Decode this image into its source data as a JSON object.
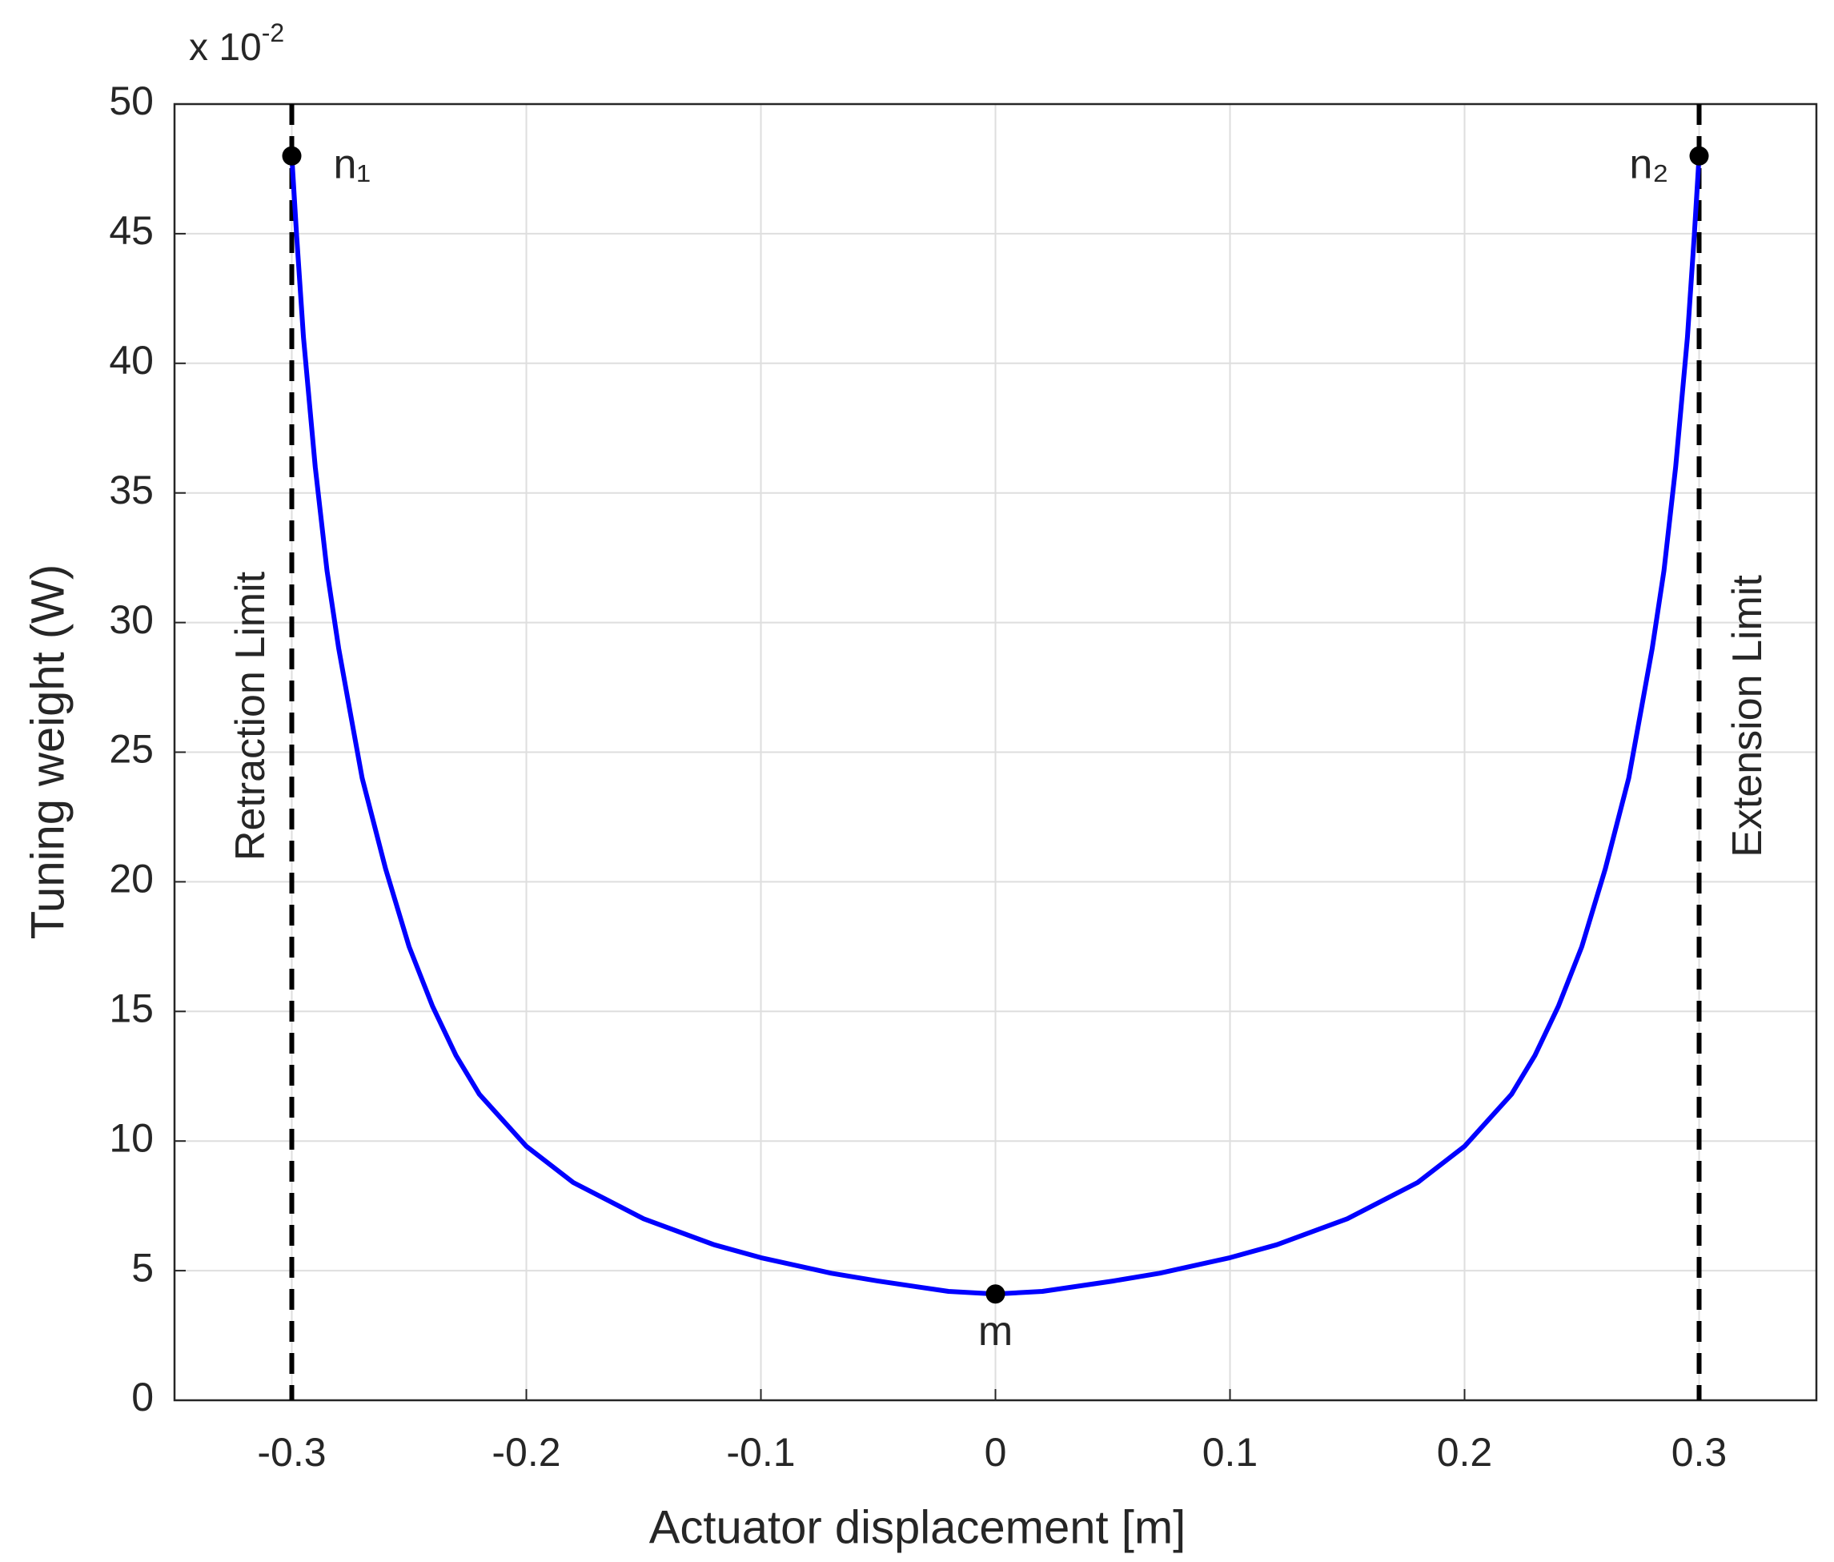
{
  "chart_data": {
    "type": "line",
    "xlabel": "Actuator displacement [m]",
    "ylabel": "Tuning weight (W)",
    "multiplier": {
      "base": "x 10",
      "exponent": "-2"
    },
    "xlim": [
      -0.35,
      0.35
    ],
    "ylim": [
      0,
      50
    ],
    "xticks": [
      -0.3,
      -0.2,
      -0.1,
      0,
      0.1,
      0.2,
      0.3
    ],
    "yticks": [
      0,
      5,
      10,
      15,
      20,
      25,
      30,
      35,
      40,
      45,
      50
    ],
    "grid": true,
    "line": {
      "color": "#0000ff",
      "x": [
        -0.3,
        -0.298,
        -0.295,
        -0.29,
        -0.285,
        -0.28,
        -0.275,
        -0.27,
        -0.26,
        -0.25,
        -0.24,
        -0.23,
        -0.22,
        -0.2,
        -0.18,
        -0.15,
        -0.12,
        -0.1,
        -0.07,
        -0.05,
        -0.02,
        0,
        0.02,
        0.05,
        0.07,
        0.1,
        0.12,
        0.15,
        0.18,
        0.2,
        0.22,
        0.23,
        0.24,
        0.25,
        0.26,
        0.27,
        0.275,
        0.28,
        0.285,
        0.29,
        0.295,
        0.298,
        0.3
      ],
      "y": [
        48,
        45,
        41,
        36,
        32,
        29,
        26.5,
        24,
        20.5,
        17.5,
        15.2,
        13.3,
        11.8,
        9.8,
        8.4,
        7.0,
        6.0,
        5.5,
        4.9,
        4.6,
        4.2,
        4.1,
        4.2,
        4.6,
        4.9,
        5.5,
        6.0,
        7.0,
        8.4,
        9.8,
        11.8,
        13.3,
        15.2,
        17.5,
        20.5,
        24,
        26.5,
        29,
        32,
        36,
        41,
        45,
        48
      ]
    },
    "limits": [
      {
        "x": -0.3,
        "label": "Retraction Limit"
      },
      {
        "x": 0.3,
        "label": "Extension Limit"
      }
    ],
    "points": [
      {
        "x": -0.3,
        "y": 48,
        "label": "n₁"
      },
      {
        "x": 0.3,
        "y": 48,
        "label": "n₂"
      },
      {
        "x": 0,
        "y": 4.1,
        "label": "m"
      }
    ]
  }
}
